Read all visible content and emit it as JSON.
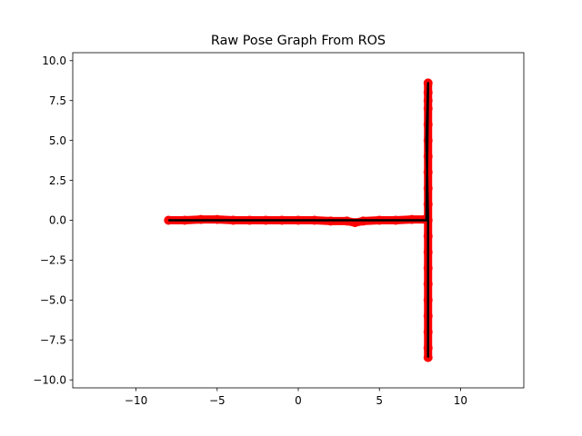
{
  "chart_data": {
    "type": "scatter",
    "title": "Raw Pose Graph From ROS",
    "xlabel": "",
    "ylabel": "",
    "xlim": [
      -13.9,
      13.9
    ],
    "ylim": [
      -10.5,
      10.5
    ],
    "xticks": [
      -10,
      -5,
      0,
      5,
      10
    ],
    "xtick_labels": [
      "−10",
      "−5",
      "0",
      "5",
      "10"
    ],
    "yticks": [
      -10.0,
      -7.5,
      -5.0,
      -2.5,
      0.0,
      2.5,
      5.0,
      7.5,
      10.0
    ],
    "ytick_labels": [
      "−10.0",
      "−7.5",
      "−5.0",
      "−2.5",
      "0.0",
      "2.5",
      "5.0",
      "7.5",
      "10.0"
    ],
    "grid": false,
    "series": [
      {
        "marker": "circle",
        "color": "#ff0000",
        "x": [
          -8,
          -7,
          -6,
          -5,
          -4,
          -3,
          -2,
          -1,
          0,
          1,
          2,
          3,
          3.5,
          4,
          5,
          6,
          7,
          7.8,
          8,
          8,
          8,
          8,
          8,
          8,
          8,
          8,
          8,
          8,
          8,
          8,
          8,
          8,
          8,
          8,
          8,
          8,
          8,
          8
        ],
        "y": [
          0,
          0,
          0.05,
          0.05,
          0,
          0,
          0,
          0,
          0,
          0,
          -0.05,
          -0.05,
          -0.15,
          -0.05,
          0,
          0,
          0.05,
          0.05,
          8.6,
          8,
          7.5,
          7,
          6,
          5,
          4,
          3,
          2,
          1,
          0,
          -1,
          -2,
          -3,
          -4,
          -5,
          -6,
          -7,
          -8,
          -8.6
        ]
      },
      {
        "marker": "line",
        "color": "#000000",
        "x": [
          -8,
          -7,
          -6,
          -5,
          -4,
          -3,
          -2,
          -1,
          0,
          1,
          2,
          3,
          4,
          5,
          6,
          7,
          7.9,
          8,
          7.9,
          8,
          8,
          8
        ],
        "y": [
          0,
          0,
          0,
          0,
          0,
          0,
          0,
          0,
          0,
          0,
          0,
          0,
          0,
          0,
          0,
          0,
          0,
          8.6,
          5,
          0,
          -5,
          -8.6
        ]
      }
    ]
  }
}
